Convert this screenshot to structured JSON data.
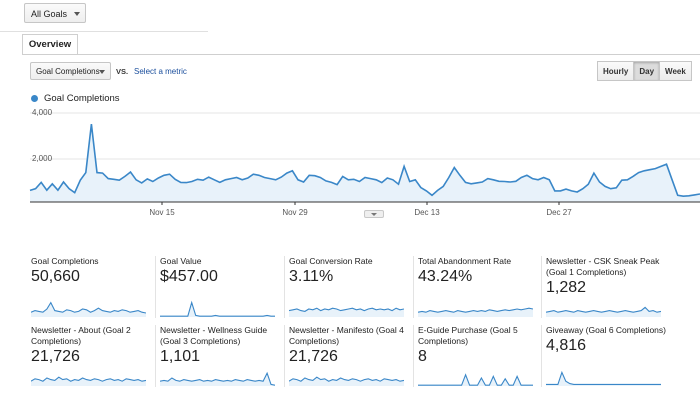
{
  "top": {
    "goals_selector": "All Goals"
  },
  "tabs": [
    {
      "label": "Overview"
    }
  ],
  "controls": {
    "metric_selector": "Goal Completions",
    "vs_label": "VS.",
    "select_metric_link": "Select a metric",
    "granularity": [
      "Hourly",
      "Day",
      "Week"
    ],
    "active_granularity": "Day"
  },
  "colors": {
    "series": "#3a87c8",
    "area": "#e8f2fa",
    "link": "#1a4e9c"
  },
  "chart_data": {
    "type": "area",
    "series": [
      {
        "name": "Goal Completions",
        "values": [
          520,
          600,
          880,
          530,
          820,
          530,
          900,
          600,
          420,
          980,
          1320,
          3500,
          1320,
          1300,
          1050,
          1020,
          980,
          1150,
          1350,
          1000,
          860,
          1040,
          920,
          1080,
          1200,
          1250,
          1020,
          880,
          870,
          920,
          1020,
          980,
          1120,
          1000,
          880,
          1000,
          1050,
          1100,
          1000,
          1080,
          1250,
          1200,
          1100,
          1050,
          1000,
          1120,
          1300,
          1400,
          1000,
          900,
          1200,
          1180,
          1100,
          950,
          880,
          780,
          1150,
          1000,
          1020,
          920,
          1100,
          1050,
          1000,
          870,
          1080,
          1000,
          800,
          1600,
          920,
          1000,
          650,
          500,
          300,
          520,
          700,
          1100,
          1550,
          1200,
          880,
          820,
          860,
          900,
          1050,
          1000,
          930,
          920,
          900,
          930,
          1100,
          1200,
          1050,
          1000,
          1100,
          1000,
          500,
          500,
          580,
          500,
          450,
          600,
          800,
          1300,
          900,
          700,
          600,
          640,
          980,
          1000,
          1150,
          1320,
          1400,
          1450,
          1500,
          1600,
          1700,
          1000,
          300,
          260,
          280,
          320,
          360
        ]
      }
    ],
    "ylim": [
      0,
      4200
    ],
    "yticks": [
      "4,000",
      "2,000"
    ],
    "xticks": [
      "Nov 15",
      "Nov 29",
      "Dec 13",
      "Dec 27"
    ],
    "grid": true
  },
  "scorecards": [
    {
      "title": "Goal Completions",
      "value": "50,660",
      "spark": [
        0.3,
        0.4,
        0.35,
        0.3,
        0.5,
        0.9,
        0.4,
        0.35,
        0.3,
        0.45,
        0.4,
        0.3,
        0.35,
        0.5,
        0.45,
        0.3,
        0.4,
        0.55,
        0.4,
        0.35,
        0.3,
        0.4,
        0.35,
        0.45,
        0.4,
        0.3,
        0.35,
        0.4,
        0.3,
        0.25
      ]
    },
    {
      "title": "Goal Value",
      "value": "$457.00",
      "spark": [
        0.05,
        0.05,
        0.05,
        0.05,
        0.05,
        0.05,
        0.05,
        0.05,
        0.9,
        0.1,
        0.05,
        0.05,
        0.05,
        0.05,
        0.1,
        0.05,
        0.05,
        0.05,
        0.05,
        0.05,
        0.05,
        0.05,
        0.05,
        0.05,
        0.05,
        0.05,
        0.05,
        0.1,
        0.05,
        0.05
      ]
    },
    {
      "title": "Goal Conversion Rate",
      "value": "3.11%",
      "spark": [
        0.4,
        0.45,
        0.5,
        0.4,
        0.35,
        0.5,
        0.45,
        0.55,
        0.4,
        0.5,
        0.45,
        0.55,
        0.5,
        0.4,
        0.45,
        0.5,
        0.55,
        0.45,
        0.5,
        0.4,
        0.5,
        0.55,
        0.45,
        0.5,
        0.45,
        0.5,
        0.4,
        0.55,
        0.45,
        0.5
      ]
    },
    {
      "title": "Total Abandonment Rate",
      "value": "43.24%",
      "spark": [
        0.3,
        0.35,
        0.3,
        0.4,
        0.35,
        0.3,
        0.35,
        0.4,
        0.35,
        0.3,
        0.4,
        0.35,
        0.3,
        0.35,
        0.4,
        0.35,
        0.4,
        0.35,
        0.45,
        0.4,
        0.35,
        0.4,
        0.45,
        0.4,
        0.45,
        0.5,
        0.45,
        0.5,
        0.55,
        0.5
      ]
    },
    {
      "title": "Newsletter - CSK Sneak Peak (Goal 1 Completions)",
      "value": "1,282",
      "spark": [
        0.3,
        0.35,
        0.4,
        0.3,
        0.35,
        0.4,
        0.35,
        0.3,
        0.4,
        0.35,
        0.3,
        0.35,
        0.4,
        0.35,
        0.3,
        0.35,
        0.4,
        0.35,
        0.3,
        0.35,
        0.4,
        0.35,
        0.3,
        0.35,
        0.4,
        0.6,
        0.35,
        0.4,
        0.3,
        0.35
      ]
    },
    {
      "title": "Newsletter - About (Goal 2 Completions)",
      "value": "21,726",
      "spark": [
        0.3,
        0.45,
        0.4,
        0.3,
        0.5,
        0.4,
        0.35,
        0.55,
        0.4,
        0.45,
        0.3,
        0.4,
        0.35,
        0.5,
        0.4,
        0.35,
        0.45,
        0.4,
        0.3,
        0.4,
        0.45,
        0.35,
        0.4,
        0.3,
        0.45,
        0.4,
        0.35,
        0.4,
        0.3,
        0.35
      ]
    },
    {
      "title": "Newsletter - Wellness Guide (Goal 3 Completions)",
      "value": "1,101",
      "spark": [
        0.3,
        0.35,
        0.3,
        0.5,
        0.35,
        0.3,
        0.4,
        0.35,
        0.3,
        0.35,
        0.4,
        0.3,
        0.35,
        0.3,
        0.4,
        0.35,
        0.3,
        0.35,
        0.3,
        0.4,
        0.35,
        0.3,
        0.4,
        0.35,
        0.3,
        0.35,
        0.3,
        0.8,
        0.1,
        0.05
      ]
    },
    {
      "title": "Newsletter - Manifesto (Goal 4 Completions)",
      "value": "21,726",
      "spark": [
        0.3,
        0.45,
        0.4,
        0.3,
        0.5,
        0.4,
        0.35,
        0.55,
        0.4,
        0.45,
        0.3,
        0.4,
        0.35,
        0.5,
        0.4,
        0.35,
        0.45,
        0.4,
        0.3,
        0.4,
        0.45,
        0.35,
        0.4,
        0.3,
        0.45,
        0.4,
        0.35,
        0.4,
        0.3,
        0.35
      ]
    },
    {
      "title": "E-Guide Purchase (Goal 5 Completions)",
      "value": "8",
      "spark": [
        0.05,
        0.05,
        0.05,
        0.05,
        0.05,
        0.05,
        0.05,
        0.05,
        0.05,
        0.05,
        0.05,
        0.05,
        0.7,
        0.05,
        0.05,
        0.05,
        0.5,
        0.05,
        0.05,
        0.6,
        0.05,
        0.05,
        0.45,
        0.05,
        0.05,
        0.6,
        0.05,
        0.05,
        0.05,
        0.05
      ]
    },
    {
      "title": "Giveaway (Goal 6 Completions)",
      "value": "4,816",
      "spark": [
        0.1,
        0.1,
        0.1,
        0.1,
        0.85,
        0.3,
        0.15,
        0.1,
        0.1,
        0.1,
        0.1,
        0.1,
        0.1,
        0.1,
        0.1,
        0.1,
        0.1,
        0.1,
        0.1,
        0.1,
        0.1,
        0.1,
        0.1,
        0.1,
        0.1,
        0.1,
        0.1,
        0.1,
        0.1,
        0.1
      ]
    }
  ]
}
